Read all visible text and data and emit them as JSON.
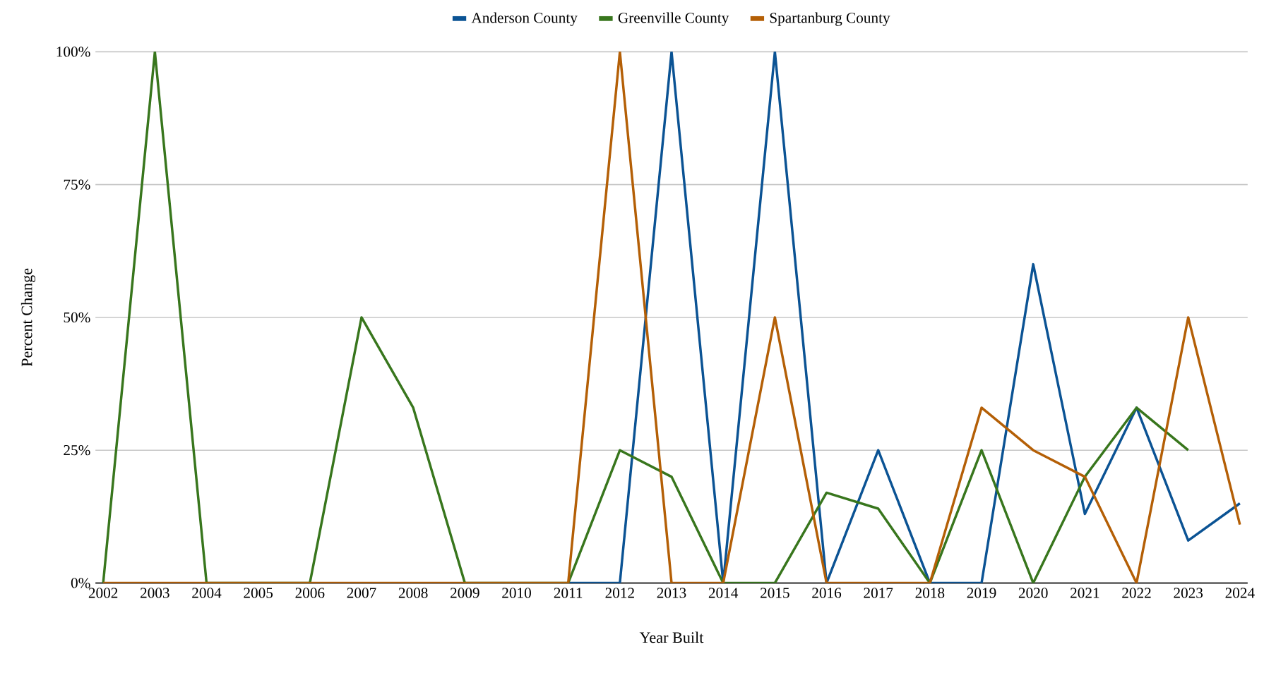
{
  "chart_data": {
    "type": "line",
    "xlabel": "Year Built",
    "ylabel": "Percent Change",
    "categories": [
      "2002",
      "2003",
      "2004",
      "2005",
      "2006",
      "2007",
      "2008",
      "2009",
      "2010",
      "2011",
      "2012",
      "2013",
      "2014",
      "2015",
      "2016",
      "2017",
      "2018",
      "2019",
      "2020",
      "2021",
      "2022",
      "2023",
      "2024"
    ],
    "series": [
      {
        "name": "Anderson County",
        "color": "#0b5394",
        "values": [
          null,
          null,
          null,
          null,
          null,
          null,
          null,
          null,
          null,
          0,
          0,
          100,
          0,
          100,
          0,
          25,
          0,
          0,
          60,
          13,
          33,
          8,
          15
        ]
      },
      {
        "name": "Greenville County",
        "color": "#38761d",
        "values": [
          0,
          100,
          0,
          0,
          0,
          50,
          33,
          0,
          0,
          0,
          25,
          20,
          0,
          0,
          17,
          14,
          0,
          25,
          0,
          20,
          33,
          25,
          null
        ]
      },
      {
        "name": "Spartanburg County",
        "color": "#b45f06",
        "values": [
          0,
          0,
          0,
          0,
          0,
          0,
          0,
          0,
          0,
          0,
          100,
          0,
          0,
          50,
          0,
          0,
          0,
          33,
          25,
          20,
          0,
          50,
          11
        ]
      }
    ],
    "ylim": [
      0,
      100
    ],
    "yticks": [
      {
        "value": 0,
        "label": "0%"
      },
      {
        "value": 25,
        "label": "25%"
      },
      {
        "value": 50,
        "label": "50%"
      },
      {
        "value": 75,
        "label": "75%"
      },
      {
        "value": 100,
        "label": "100%"
      }
    ],
    "grid": "y",
    "legend": "top",
    "marker": "none",
    "line_style": "solid"
  }
}
